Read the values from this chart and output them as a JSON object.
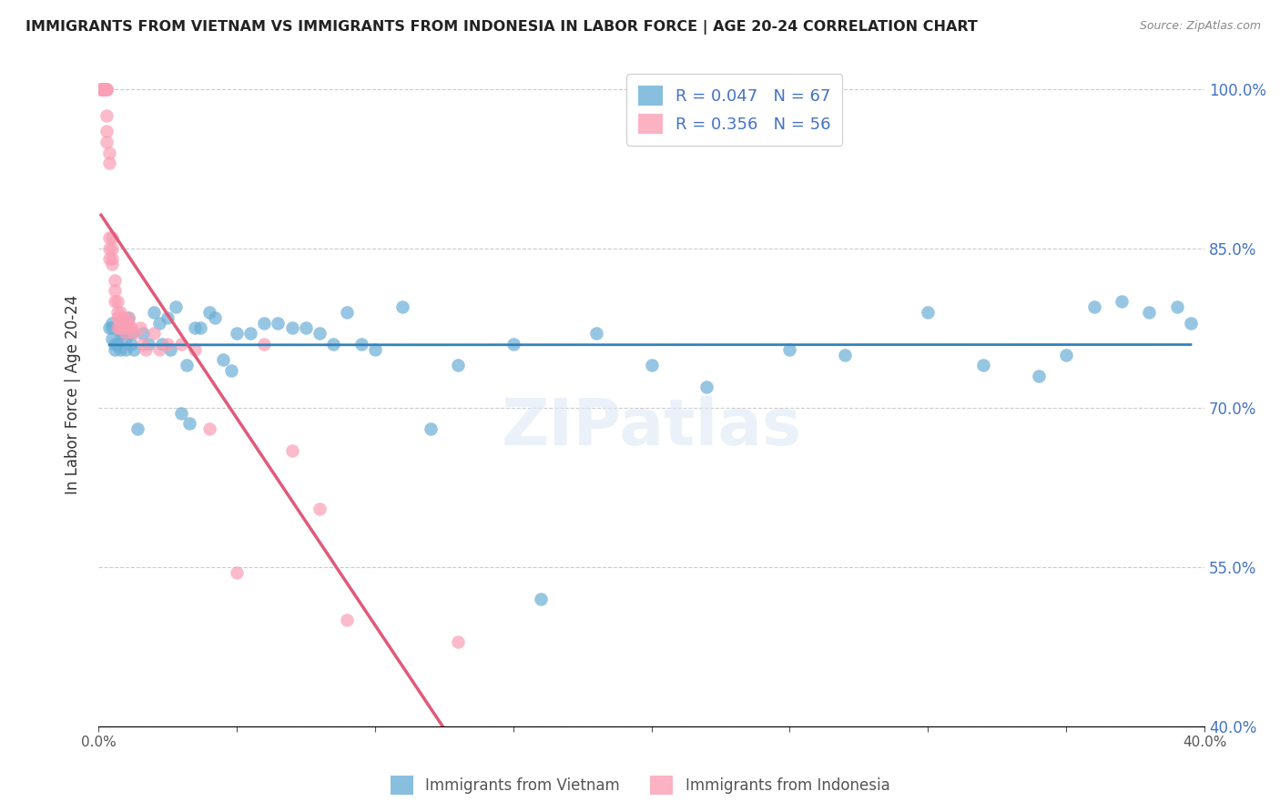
{
  "title": "IMMIGRANTS FROM VIETNAM VS IMMIGRANTS FROM INDONESIA IN LABOR FORCE | AGE 20-24 CORRELATION CHART",
  "source": "Source: ZipAtlas.com",
  "ylabel": "In Labor Force | Age 20-24",
  "xlim": [
    0.0,
    0.4
  ],
  "ylim": [
    0.4,
    1.025
  ],
  "xticks": [
    0.0,
    0.05,
    0.1,
    0.15,
    0.2,
    0.25,
    0.3,
    0.35,
    0.4
  ],
  "xtick_labels": [
    "0.0%",
    "",
    "",
    "",
    "",
    "",
    "",
    "",
    "40.0%"
  ],
  "yticks": [
    0.4,
    0.55,
    0.7,
    0.85,
    1.0
  ],
  "ytick_labels": [
    "40.0%",
    "55.0%",
    "70.0%",
    "85.0%",
    "100.0%"
  ],
  "blue_color": "#6baed6",
  "pink_color": "#fa9fb5",
  "trend_blue": "#3182bd",
  "trend_pink": "#e05a7a",
  "legend_r_blue": "R = 0.047",
  "legend_n_blue": "N = 67",
  "legend_r_pink": "R = 0.356",
  "legend_n_pink": "N = 56",
  "watermark": "ZIPatlas",
  "blue_scatter_x": [
    0.004,
    0.005,
    0.005,
    0.005,
    0.006,
    0.006,
    0.007,
    0.007,
    0.008,
    0.008,
    0.009,
    0.009,
    0.01,
    0.01,
    0.01,
    0.011,
    0.012,
    0.012,
    0.013,
    0.014,
    0.016,
    0.018,
    0.02,
    0.022,
    0.023,
    0.025,
    0.026,
    0.028,
    0.03,
    0.032,
    0.033,
    0.035,
    0.037,
    0.04,
    0.042,
    0.045,
    0.048,
    0.05,
    0.055,
    0.06,
    0.065,
    0.07,
    0.075,
    0.08,
    0.085,
    0.09,
    0.095,
    0.1,
    0.11,
    0.12,
    0.13,
    0.15,
    0.16,
    0.18,
    0.2,
    0.22,
    0.25,
    0.27,
    0.3,
    0.32,
    0.34,
    0.35,
    0.36,
    0.37,
    0.38,
    0.39,
    0.395
  ],
  "blue_scatter_y": [
    0.775,
    0.78,
    0.775,
    0.765,
    0.76,
    0.755,
    0.775,
    0.76,
    0.77,
    0.755,
    0.78,
    0.77,
    0.77,
    0.765,
    0.755,
    0.785,
    0.77,
    0.76,
    0.755,
    0.68,
    0.77,
    0.76,
    0.79,
    0.78,
    0.76,
    0.785,
    0.755,
    0.795,
    0.695,
    0.74,
    0.685,
    0.775,
    0.775,
    0.79,
    0.785,
    0.745,
    0.735,
    0.77,
    0.77,
    0.78,
    0.78,
    0.775,
    0.775,
    0.77,
    0.76,
    0.79,
    0.76,
    0.755,
    0.795,
    0.68,
    0.74,
    0.76,
    0.52,
    0.77,
    0.74,
    0.72,
    0.755,
    0.75,
    0.79,
    0.74,
    0.73,
    0.75,
    0.795,
    0.8,
    0.79,
    0.795,
    0.78
  ],
  "pink_scatter_x": [
    0.001,
    0.001,
    0.001,
    0.002,
    0.002,
    0.002,
    0.002,
    0.003,
    0.003,
    0.003,
    0.003,
    0.003,
    0.003,
    0.004,
    0.004,
    0.004,
    0.004,
    0.004,
    0.005,
    0.005,
    0.005,
    0.005,
    0.006,
    0.006,
    0.006,
    0.007,
    0.007,
    0.007,
    0.007,
    0.008,
    0.008,
    0.008,
    0.009,
    0.009,
    0.01,
    0.01,
    0.011,
    0.011,
    0.011,
    0.012,
    0.013,
    0.015,
    0.016,
    0.017,
    0.02,
    0.022,
    0.025,
    0.03,
    0.035,
    0.04,
    0.05,
    0.06,
    0.07,
    0.08,
    0.09,
    0.13
  ],
  "pink_scatter_y": [
    1.0,
    1.0,
    1.0,
    1.0,
    1.0,
    1.0,
    1.0,
    1.0,
    1.0,
    1.0,
    0.975,
    0.96,
    0.95,
    0.94,
    0.93,
    0.86,
    0.85,
    0.84,
    0.86,
    0.85,
    0.84,
    0.835,
    0.82,
    0.81,
    0.8,
    0.8,
    0.79,
    0.785,
    0.775,
    0.79,
    0.78,
    0.775,
    0.785,
    0.775,
    0.78,
    0.77,
    0.785,
    0.78,
    0.775,
    0.775,
    0.77,
    0.775,
    0.76,
    0.755,
    0.77,
    0.755,
    0.76,
    0.76,
    0.755,
    0.68,
    0.545,
    0.76,
    0.66,
    0.605,
    0.5,
    0.48
  ],
  "trend_pink_x0": 0.001,
  "trend_pink_x1": 0.17,
  "trend_blue_x0": 0.004,
  "trend_blue_x1": 0.395
}
